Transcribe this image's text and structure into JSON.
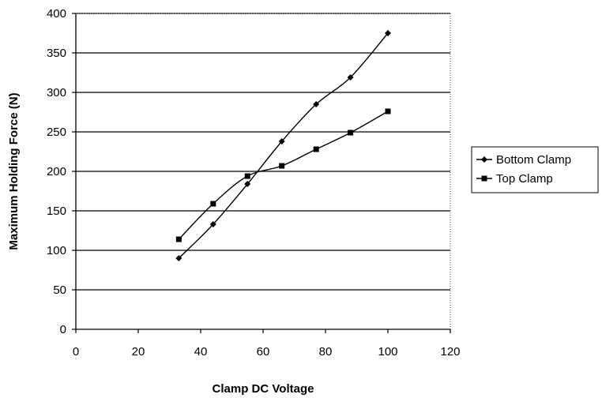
{
  "chart_data": {
    "type": "line",
    "title": "",
    "xlabel": "Clamp DC Voltage",
    "ylabel": "Maximum Holding Force (N)",
    "xlim": [
      0,
      120
    ],
    "ylim": [
      0,
      400
    ],
    "xticks": [
      0,
      20,
      40,
      60,
      80,
      100,
      120
    ],
    "yticks": [
      0,
      50,
      100,
      150,
      200,
      250,
      300,
      350,
      400
    ],
    "grid": "horizontal",
    "legend_position": "right",
    "series": [
      {
        "name": "Bottom Clamp",
        "marker": "diamond",
        "color": "#000000",
        "x": [
          33,
          44,
          55,
          66,
          77,
          88,
          100
        ],
        "y": [
          90,
          133,
          184,
          238,
          285,
          319,
          375
        ]
      },
      {
        "name": "Top Clamp",
        "marker": "square",
        "color": "#000000",
        "x": [
          33,
          44,
          55,
          66,
          77,
          88,
          100
        ],
        "y": [
          114,
          159,
          194,
          207,
          228,
          249,
          276
        ]
      }
    ]
  }
}
